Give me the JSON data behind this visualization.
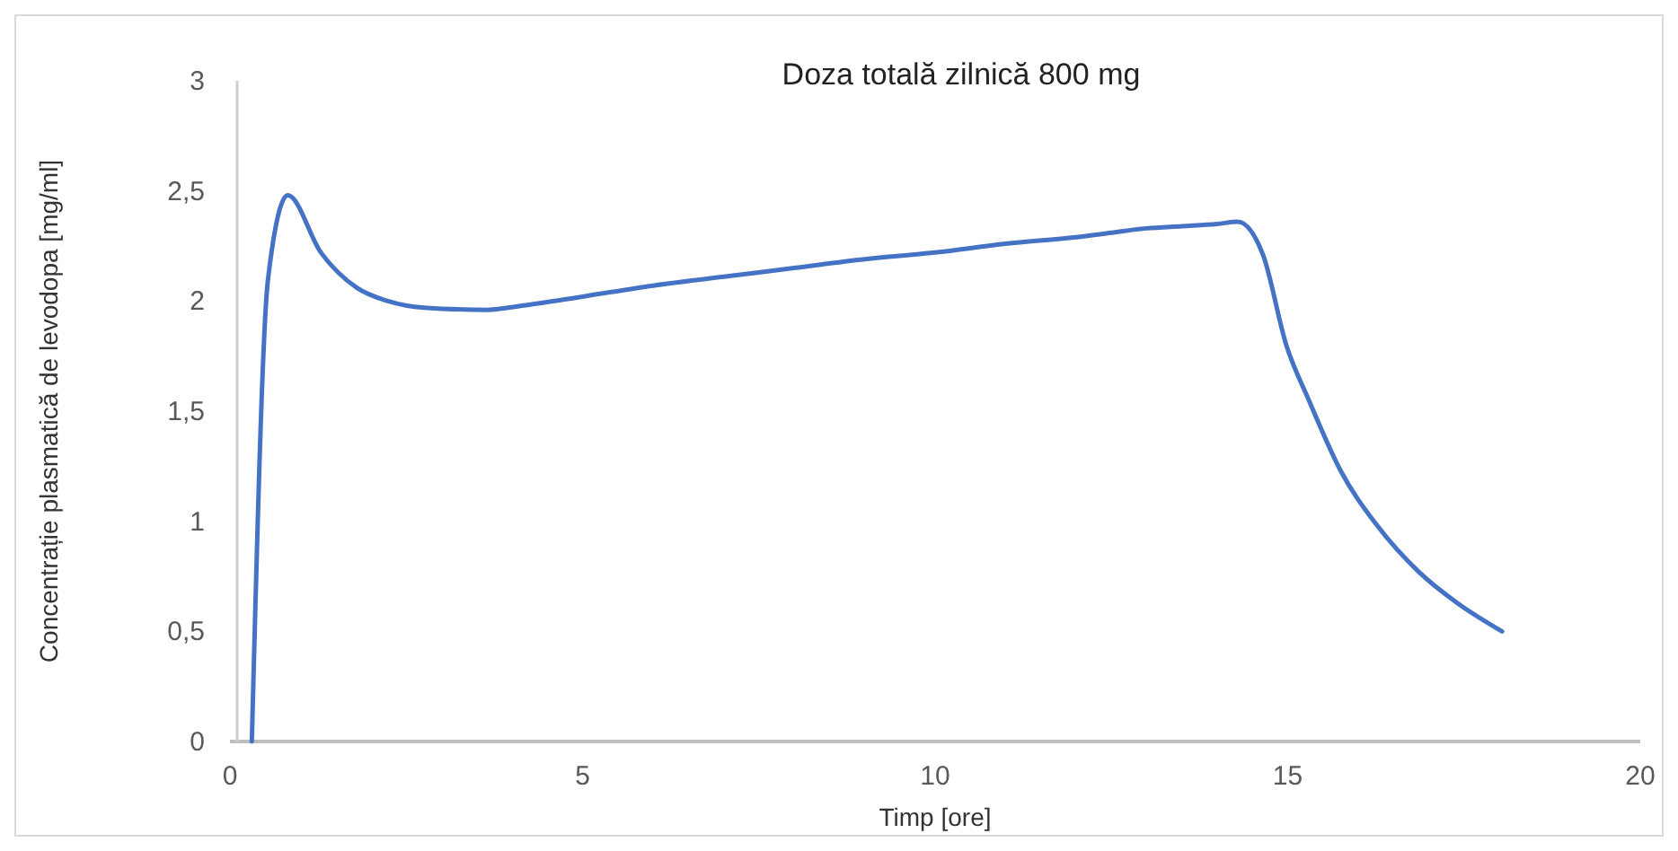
{
  "chart_data": {
    "type": "line",
    "title": "Doza totală zilnică 800 mg",
    "xlabel": "Timp [ore]",
    "ylabel": "Concentrație plasmatică de levodopa [mg/ml]",
    "x": [
      0.31,
      0.54,
      0.82,
      1.29,
      1.8,
      2.24,
      2.75,
      3.65,
      4.17,
      5,
      6,
      7,
      8,
      9,
      10,
      11,
      12,
      12.5,
      13,
      13.5,
      14,
      14.29,
      14.65,
      14.98,
      15.3,
      15.75,
      16.27,
      16.86,
      17.4,
      18.04
    ],
    "series": [
      {
        "color": "#4472c4",
        "values": [
          0,
          2.1,
          2.48,
          2.22,
          2.06,
          2.0,
          1.97,
          1.96,
          1.98,
          2.02,
          2.07,
          2.11,
          2.15,
          2.19,
          2.22,
          2.26,
          2.29,
          2.31,
          2.33,
          2.34,
          2.35,
          2.36,
          2.21,
          1.8,
          1.55,
          1.23,
          0.98,
          0.77,
          0.63,
          0.5
        ]
      }
    ],
    "xlim": [
      0,
      20
    ],
    "xticks": [
      0,
      5,
      10,
      15,
      20
    ],
    "ylim": [
      0,
      3
    ],
    "yticks": [
      0,
      {
        "value": 0.5,
        "label": "0,5"
      },
      1,
      {
        "value": 1.5,
        "label": "1,5"
      },
      2,
      {
        "value": 2.5,
        "label": "2,5"
      },
      3
    ],
    "grid": false,
    "marker": "none",
    "line_style": "solid"
  }
}
